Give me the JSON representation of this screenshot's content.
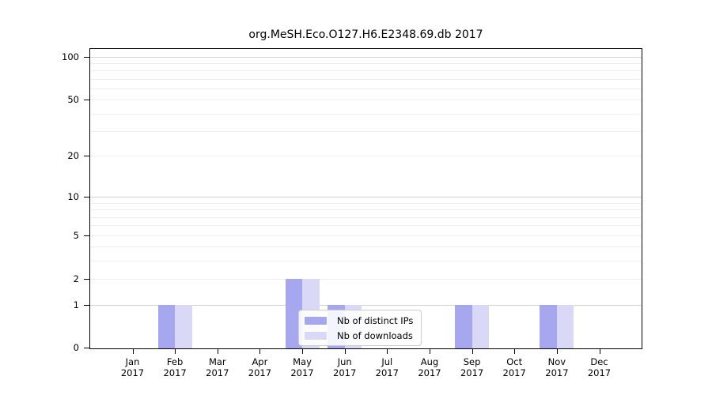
{
  "chart_data": {
    "type": "bar",
    "title": "org.MeSH.Eco.O127.H6.E2348.69.db 2017",
    "x_labels": [
      [
        "Jan",
        "2017"
      ],
      [
        "Feb",
        "2017"
      ],
      [
        "Mar",
        "2017"
      ],
      [
        "Apr",
        "2017"
      ],
      [
        "May",
        "2017"
      ],
      [
        "Jun",
        "2017"
      ],
      [
        "Jul",
        "2017"
      ],
      [
        "Aug",
        "2017"
      ],
      [
        "Sep",
        "2017"
      ],
      [
        "Oct",
        "2017"
      ],
      [
        "Nov",
        "2017"
      ],
      [
        "Dec",
        "2017"
      ]
    ],
    "series": [
      {
        "name": "Nb of distinct IPs",
        "color": "#a7a7ef",
        "values": [
          0,
          1,
          0,
          0,
          2,
          1,
          0,
          0,
          1,
          0,
          1,
          0
        ]
      },
      {
        "name": "Nb of downloads",
        "color": "#d9d9f7",
        "values": [
          0,
          1,
          0,
          0,
          2,
          1,
          0,
          0,
          1,
          0,
          1,
          0
        ]
      }
    ],
    "y_scale": "log10(1+v)",
    "ylim": [
      0,
      113
    ],
    "y_tick_labels": [
      100,
      50,
      20,
      10,
      5,
      2,
      1,
      0
    ],
    "y_major_gridlines": [
      1,
      10,
      100
    ],
    "y_minor_gridlines": [
      2,
      3,
      4,
      5,
      6,
      7,
      8,
      9,
      20,
      30,
      40,
      50,
      60,
      70,
      80,
      90
    ],
    "grid": true,
    "legend_position": "lower center"
  },
  "colors": {
    "axis": "#000000",
    "grid_major": "#d3d3d3",
    "grid_minor": "#ededed",
    "legend_border": "#cccccc"
  }
}
